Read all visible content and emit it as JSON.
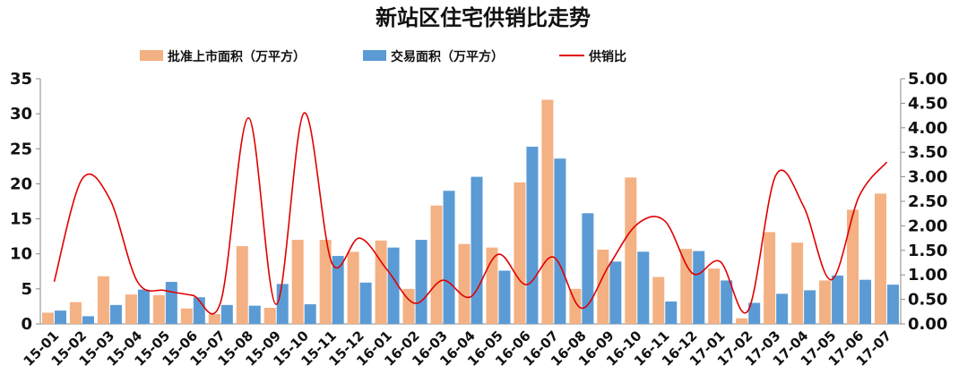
{
  "chart_data": {
    "type": "bar",
    "title": "新站区住宅供销比走势",
    "categories": [
      "15-01",
      "15-02",
      "15-03",
      "15-04",
      "15-05",
      "15-06",
      "15-07",
      "15-08",
      "15-09",
      "15-10",
      "15-11",
      "15-12",
      "16-01",
      "16-02",
      "16-03",
      "16-04",
      "16-05",
      "16-06",
      "16-07",
      "16-08",
      "16-09",
      "16-10",
      "16-11",
      "16-12",
      "17-01",
      "17-02",
      "17-03",
      "17-04",
      "17-05",
      "17-06",
      "17-07"
    ],
    "series": [
      {
        "name": "批准上市面积（万平方）",
        "kind": "bar",
        "axis": "left",
        "color": "#F4B183",
        "values": [
          1.6,
          3.1,
          6.8,
          4.2,
          4.1,
          2.2,
          1.4,
          11.1,
          2.3,
          12.0,
          12.0,
          10.3,
          11.9,
          5.0,
          16.9,
          11.4,
          10.9,
          20.2,
          32.0,
          5.0,
          10.6,
          20.9,
          6.7,
          10.7,
          7.9,
          0.8,
          13.1,
          11.6,
          6.2,
          16.3,
          18.6
        ]
      },
      {
        "name": "交易面积（万平方）",
        "kind": "bar",
        "axis": "left",
        "color": "#5B9BD5",
        "values": [
          1.9,
          1.1,
          2.7,
          4.9,
          6.0,
          3.8,
          2.7,
          2.6,
          5.7,
          2.8,
          9.7,
          5.9,
          10.9,
          12.0,
          19.0,
          21.0,
          7.6,
          25.3,
          23.6,
          15.8,
          8.9,
          10.3,
          3.2,
          10.4,
          6.2,
          3.0,
          4.3,
          4.8,
          6.9,
          6.3,
          5.6
        ]
      },
      {
        "name": "供销比",
        "kind": "line",
        "axis": "right",
        "color": "#E00000",
        "values": [
          0.86,
          2.95,
          2.55,
          0.86,
          0.68,
          0.58,
          0.45,
          4.2,
          0.4,
          4.3,
          1.25,
          1.75,
          1.1,
          0.42,
          0.89,
          0.55,
          1.42,
          0.8,
          1.36,
          0.32,
          1.2,
          2.03,
          2.1,
          1.03,
          1.27,
          0.27,
          3.03,
          2.4,
          0.9,
          2.6,
          3.3
        ]
      }
    ],
    "y_left": {
      "range": [
        0,
        35
      ],
      "ticks": [
        "0",
        "5",
        "10",
        "15",
        "20",
        "25",
        "30",
        "35"
      ]
    },
    "y_right": {
      "range": [
        0,
        5
      ],
      "ticks": [
        "0.00",
        "0.50",
        "1.00",
        "1.50",
        "2.00",
        "2.50",
        "3.00",
        "3.50",
        "4.00",
        "4.50",
        "5.00"
      ]
    },
    "xlabel": "",
    "ylabel": "",
    "grid": false,
    "legend_position": "top"
  }
}
